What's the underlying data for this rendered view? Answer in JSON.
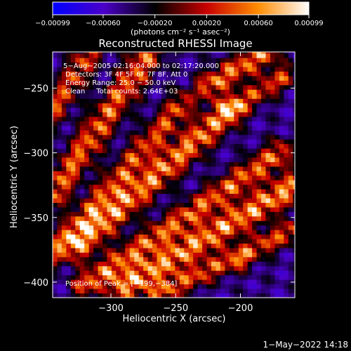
{
  "chart_data": {
    "type": "heatmap",
    "title": "Reconstructed RHESSI Image",
    "xlabel": "Heliocentric X (arcsec)",
    "ylabel": "Heliocentric Y (arcsec)",
    "xlim": [
      -345,
      -158
    ],
    "ylim": [
      -412,
      -222
    ],
    "xticks": [
      -300,
      -250,
      -200
    ],
    "xtick_labels": [
      "−300",
      "−250",
      "−200"
    ],
    "yticks": [
      -250,
      -300,
      -350,
      -400
    ],
    "ytick_labels": [
      "−250",
      "−300",
      "−350",
      "−400"
    ],
    "colorbar": {
      "min": -0.00099,
      "max": 0.00099,
      "ticks": [
        -0.00099,
        -0.0006,
        -0.0002,
        0.0002,
        0.0006,
        0.00099
      ],
      "tick_labels": [
        "−0.00099",
        "−0.00060",
        "−0.00020",
        "0.00020",
        "0.00060",
        "0.00099"
      ],
      "unit_label": "(photons cm⁻² s⁻¹ asec⁻²)",
      "colors": [
        "#0000ff",
        "#4b00c8",
        "#000000",
        "#c80000",
        "#ff8c00",
        "#ffffff"
      ]
    },
    "annotations": {
      "time_range": "5−Aug−2005 02:16:04.000 to 02:17:20.000",
      "detectors": "Detectors: 3F 4F 5F 6F 7F 8F, Att 0",
      "energy_range": "Energy Range: 25.0 − 50.0 keV",
      "clean": "Clean     Total counts: 2.64E+03",
      "peak": "Position of Peak = [−199,−384]"
    },
    "peak": [
      -199,
      -384
    ],
    "bands": [
      {
        "x1": -345,
        "y1": -268,
        "x2": -316,
        "y2": -222,
        "level": 0.00055,
        "width": 7
      },
      {
        "x1": -345,
        "y1": -332,
        "x2": -270,
        "y2": -222,
        "level": 0.0007,
        "width": 8
      },
      {
        "x1": -345,
        "y1": -378,
        "x2": -245,
        "y2": -262,
        "level": 0.0006,
        "width": 7
      },
      {
        "x1": -325,
        "y1": -372,
        "x2": -210,
        "y2": -268,
        "level": 0.00085,
        "width": 8
      },
      {
        "x1": -320,
        "y1": -402,
        "x2": -170,
        "y2": -300,
        "level": 0.00072,
        "width": 7
      },
      {
        "x1": -290,
        "y1": -404,
        "x2": -160,
        "y2": -326,
        "level": 0.00092,
        "width": 8
      },
      {
        "x1": -265,
        "y1": -410,
        "x2": -160,
        "y2": -360,
        "level": 0.0006,
        "width": 6
      },
      {
        "x1": -225,
        "y1": -248,
        "x2": -180,
        "y2": -222,
        "level": 0.00078,
        "width": 7
      },
      {
        "x1": -205,
        "y1": -265,
        "x2": -165,
        "y2": -240,
        "level": 0.00055,
        "width": 6
      }
    ],
    "grid": false
  },
  "footer": {
    "date": "1−May−2022 14:18"
  }
}
